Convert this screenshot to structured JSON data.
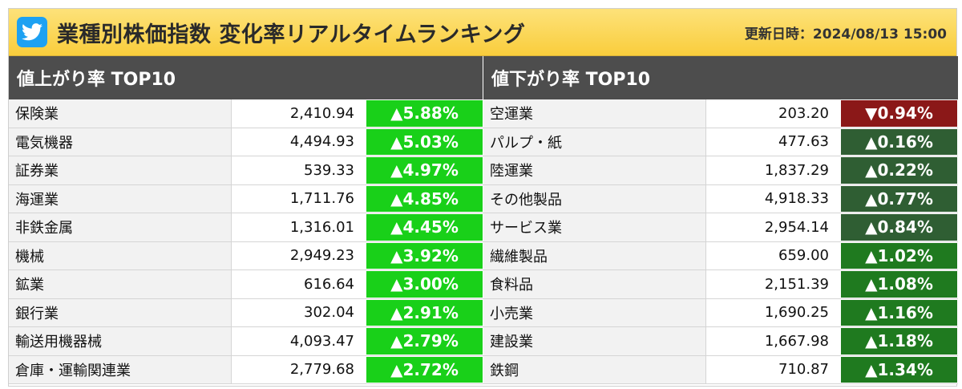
{
  "header": {
    "title": "業種別株価指数 変化率リアルタイムランキング",
    "updated": "更新日時：2024/08/13 15:00"
  },
  "colors": {
    "bright_green": "#19d019",
    "dark_green_1": "#2f5e33",
    "dark_green_2": "#1f7a1f",
    "dark_red": "#8b1818"
  },
  "gainers": {
    "title": "値上がり率 TOP10",
    "rows": [
      {
        "name": "保険業",
        "value": "2,410.94",
        "rate": "▲5.88%",
        "color": "#19d019"
      },
      {
        "name": "電気機器",
        "value": "4,494.93",
        "rate": "▲5.03%",
        "color": "#19d019"
      },
      {
        "name": "証券業",
        "value": "539.33",
        "rate": "▲4.97%",
        "color": "#19d019"
      },
      {
        "name": "海運業",
        "value": "1,711.76",
        "rate": "▲4.85%",
        "color": "#19d019"
      },
      {
        "name": "非鉄金属",
        "value": "1,316.01",
        "rate": "▲4.45%",
        "color": "#19d019"
      },
      {
        "name": "機械",
        "value": "2,949.23",
        "rate": "▲3.92%",
        "color": "#19d019"
      },
      {
        "name": "鉱業",
        "value": "616.64",
        "rate": "▲3.00%",
        "color": "#19d019"
      },
      {
        "name": "銀行業",
        "value": "302.04",
        "rate": "▲2.91%",
        "color": "#19d019"
      },
      {
        "name": "輸送用機器械",
        "value": "4,093.47",
        "rate": "▲2.79%",
        "color": "#19d019"
      },
      {
        "name": "倉庫・運輸関連業",
        "value": "2,779.68",
        "rate": "▲2.72%",
        "color": "#19d019"
      }
    ]
  },
  "losers": {
    "title": "値下がり率 TOP10",
    "rows": [
      {
        "name": "空運業",
        "value": "203.20",
        "rate": "▼0.94%",
        "color": "#8b1818"
      },
      {
        "name": "パルプ・紙",
        "value": "477.63",
        "rate": "▲0.16%",
        "color": "#2f5e33"
      },
      {
        "name": "陸運業",
        "value": "1,837.29",
        "rate": "▲0.22%",
        "color": "#2f5e33"
      },
      {
        "name": "その他製品",
        "value": "4,918.33",
        "rate": "▲0.77%",
        "color": "#2f5e33"
      },
      {
        "name": "サービス業",
        "value": "2,954.14",
        "rate": "▲0.84%",
        "color": "#2f5e33"
      },
      {
        "name": "繊維製品",
        "value": "659.00",
        "rate": "▲1.02%",
        "color": "#1f7a1f"
      },
      {
        "name": "食料品",
        "value": "2,151.39",
        "rate": "▲1.08%",
        "color": "#1f7a1f"
      },
      {
        "name": "小売業",
        "value": "1,690.25",
        "rate": "▲1.16%",
        "color": "#1f7a1f"
      },
      {
        "name": "建設業",
        "value": "1,667.98",
        "rate": "▲1.18%",
        "color": "#1f7a1f"
      },
      {
        "name": "鉄鋼",
        "value": "710.87",
        "rate": "▲1.34%",
        "color": "#1f7a1f"
      }
    ]
  }
}
